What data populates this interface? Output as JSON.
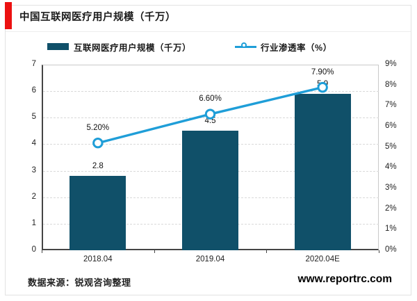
{
  "page": {
    "title": "中国互联网医疗用户规模（千万）",
    "source": "数据来源：锐观咨询整理",
    "website": "www.reportrc.com"
  },
  "colors": {
    "accent_red": "#ec1111",
    "bar": "#105069",
    "line": "#1f9ed8",
    "grid": "#d9d9d9",
    "axis": "#454545",
    "frame": "#e2e2e2"
  },
  "legend": [
    {
      "label": "互联网医疗用户规模（千万）",
      "marker": "bar-swatch"
    },
    {
      "label": "行业渗透率（%）",
      "marker": "line-circle-swatch"
    }
  ],
  "chart_data": {
    "type": "bar+line combo",
    "title": "中国互联网医疗用户规模（千万）",
    "categories": [
      "2018.04",
      "2019.04",
      "2020.04E"
    ],
    "series": [
      {
        "name": "互联网医疗用户规模（千万）",
        "type": "bar",
        "axis": "left",
        "values": [
          2.8,
          4.5,
          5.9
        ],
        "labels": [
          "2.8",
          "4.5",
          "5.9"
        ]
      },
      {
        "name": "行业渗透率（%）",
        "type": "line",
        "axis": "right",
        "values": [
          5.2,
          6.6,
          7.9
        ],
        "labels": [
          "5.20%",
          "6.60%",
          "7.90%"
        ]
      }
    ],
    "left_axis": {
      "min": 0,
      "max": 7,
      "step": 1,
      "ticks": [
        "0",
        "1",
        "2",
        "3",
        "4",
        "5",
        "6",
        "7"
      ]
    },
    "right_axis": {
      "min": 0,
      "max": 9,
      "step": 1,
      "ticks": [
        "0%",
        "1%",
        "2%",
        "3%",
        "4%",
        "5%",
        "6%",
        "7%",
        "8%",
        "9%"
      ]
    },
    "grid": "horizontal dashed, left-axis intervals",
    "legend_position": "top"
  }
}
